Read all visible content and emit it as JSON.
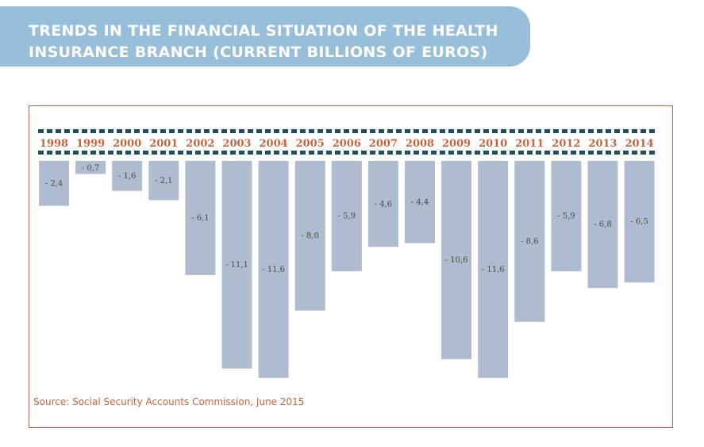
{
  "title": "TRENDS IN THE FINANCIAL SITUATION OF THE HEALTH INSURANCE BRANCH (CURRENT BILLIONS OF EUROS)",
  "source": "Source: Social Security Accounts Commission, June 2015",
  "colors": {
    "banner": "#97bfd9",
    "bar": "#afbccf",
    "accent": "#c8623a",
    "dots": "#1f4e63"
  },
  "chart_data": {
    "type": "bar",
    "categories": [
      "1998",
      "1999",
      "2000",
      "2001",
      "2002",
      "2003",
      "2004",
      "2005",
      "2006",
      "2007",
      "2008",
      "2009",
      "2010",
      "2011",
      "2012",
      "2013",
      "2014"
    ],
    "values": [
      -2.4,
      -0.7,
      -1.6,
      -2.1,
      -6.1,
      -11.1,
      -11.6,
      -8.0,
      -5.9,
      -4.6,
      -4.4,
      -10.6,
      -11.6,
      -8.6,
      -5.9,
      -6.8,
      -6.5
    ],
    "value_labels": [
      "- 2,4",
      "- 0,7",
      "- 1,6",
      "- 2,1",
      "- 6,1",
      "- 11,1",
      "- 11,6",
      "- 8,0",
      "- 5,9",
      "- 4,6",
      "- 4,4",
      "- 10,6",
      "- 11,6",
      "- 8,6",
      "- 5,9",
      "- 6,8",
      "- 6,5"
    ],
    "bars_hang_from_top": true,
    "legend": "none",
    "grid": false
  }
}
